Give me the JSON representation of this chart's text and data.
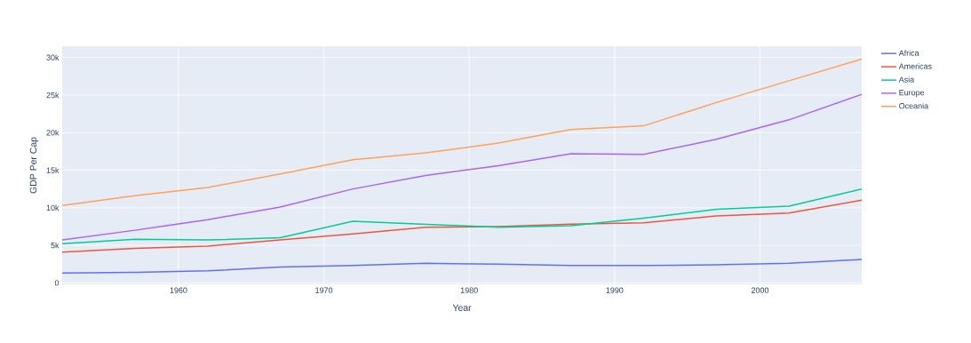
{
  "chart_data": {
    "type": "line",
    "xlabel": "Year",
    "ylabel": "GDP Per Cap",
    "x": [
      1952,
      1957,
      1962,
      1967,
      1972,
      1977,
      1982,
      1987,
      1992,
      1997,
      2002,
      2007
    ],
    "series": [
      {
        "name": "Africa",
        "color": "#636efa",
        "values": [
          1300,
          1400,
          1600,
          2100,
          2300,
          2600,
          2500,
          2300,
          2300,
          2400,
          2600,
          3100
        ]
      },
      {
        "name": "Americas",
        "color": "#ef553b",
        "values": [
          4100,
          4600,
          4900,
          5700,
          6500,
          7400,
          7500,
          7800,
          8000,
          8900,
          9300,
          11000
        ]
      },
      {
        "name": "Asia",
        "color": "#00cc96",
        "values": [
          5200,
          5800,
          5700,
          6000,
          8200,
          7800,
          7400,
          7600,
          8600,
          9800,
          10200,
          12500
        ]
      },
      {
        "name": "Europe",
        "color": "#ab63fa",
        "values": [
          5700,
          7000,
          8400,
          10100,
          12500,
          14300,
          15600,
          17200,
          17100,
          19100,
          21700,
          25100
        ]
      },
      {
        "name": "Oceania",
        "color": "#ffa15a",
        "values": [
          10300,
          11600,
          12700,
          14500,
          16400,
          17300,
          18600,
          20400,
          20900,
          24000,
          26900,
          29800
        ]
      }
    ],
    "xlim": [
      1952,
      2007
    ],
    "xticks": [
      1960,
      1970,
      1980,
      1990,
      2000
    ],
    "ylim": [
      -200,
      31500
    ],
    "yticks": [
      0,
      {
        "value": 5000,
        "label": "5k"
      },
      {
        "value": 10000,
        "label": "10k"
      },
      {
        "value": 15000,
        "label": "15k"
      },
      {
        "value": 20000,
        "label": "20k"
      },
      {
        "value": 25000,
        "label": "25k"
      },
      {
        "value": 30000,
        "label": "30k"
      }
    ],
    "grid": true,
    "legend": "top right",
    "marker": "none",
    "line_style": "solid"
  }
}
